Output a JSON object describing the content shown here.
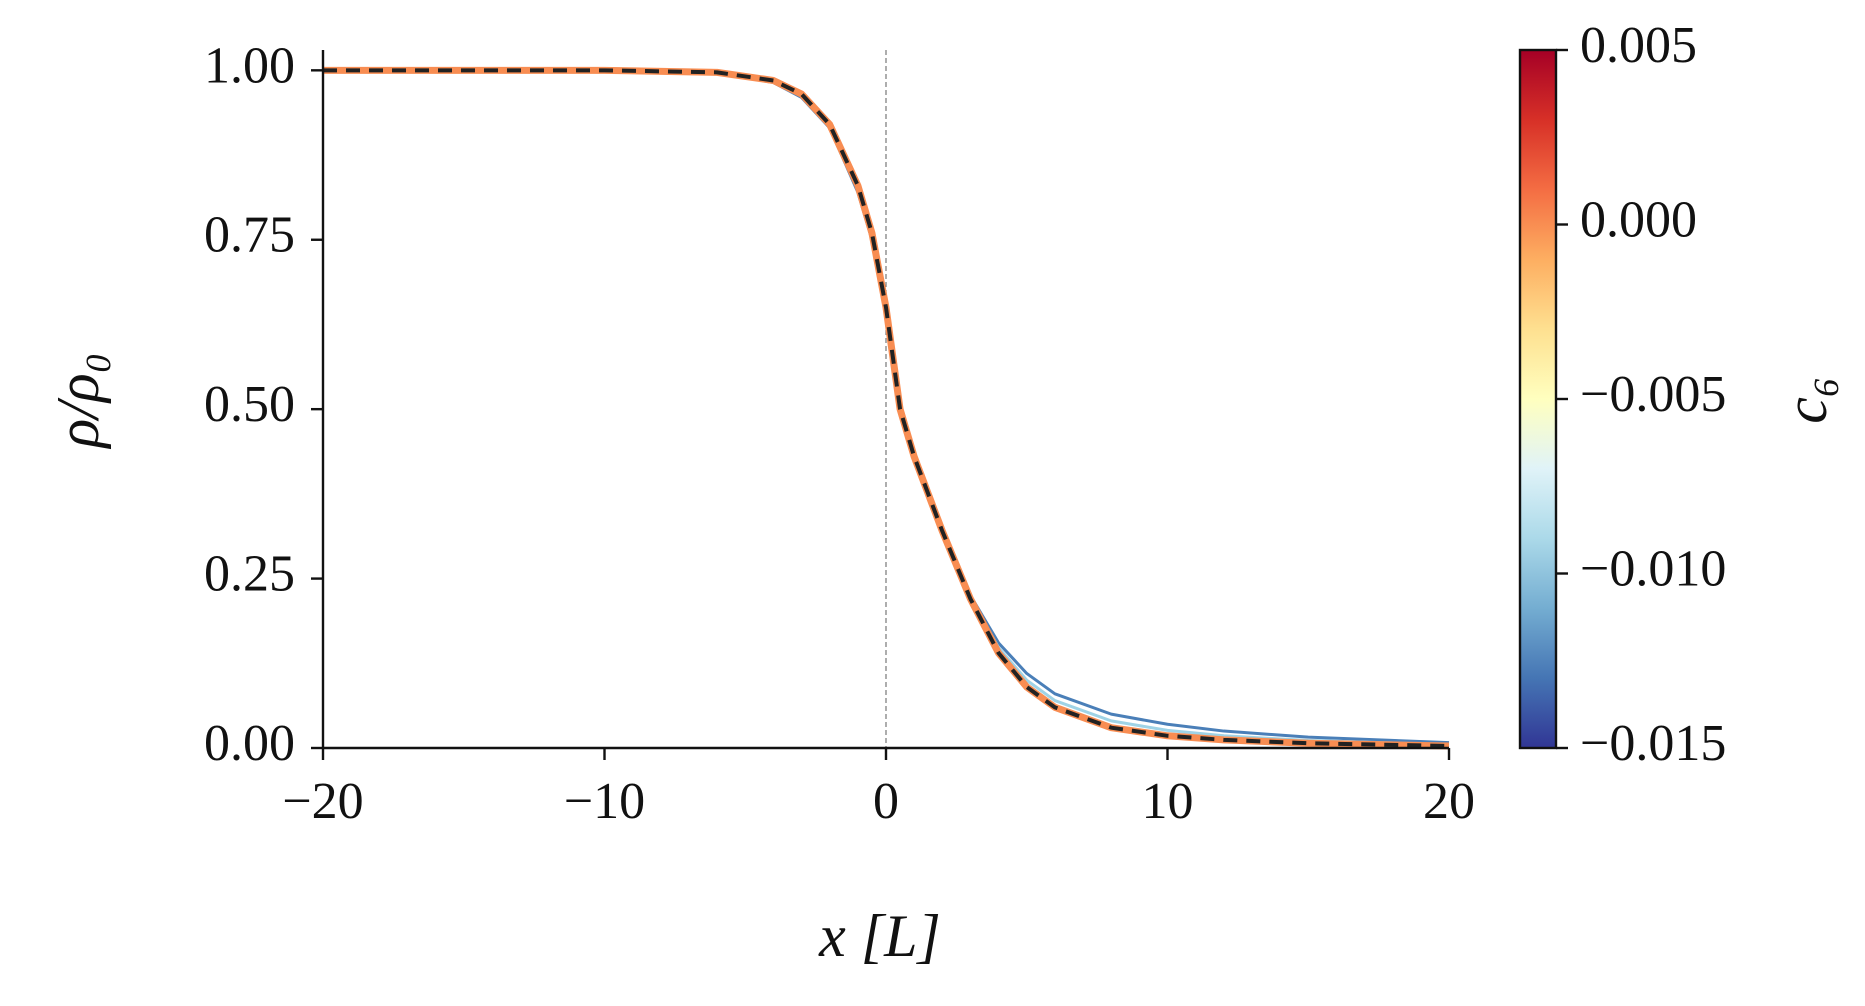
{
  "chart_data": {
    "type": "line",
    "x_label": "x [L]",
    "y_label": "ρ/ρ₀",
    "x": [
      -20,
      -15,
      -10,
      -6,
      -4,
      -3,
      -2,
      -1,
      -0.5,
      0,
      0.5,
      1,
      2,
      3,
      4,
      5,
      6,
      8,
      10,
      12,
      15,
      20
    ],
    "series": [
      {
        "color": "#4a7fb8",
        "values": [
          1,
          1,
          1,
          0.996,
          0.982,
          0.96,
          0.915,
          0.82,
          0.75,
          0.65,
          0.5,
          0.43,
          0.32,
          0.225,
          0.155,
          0.11,
          0.08,
          0.05,
          0.035,
          0.025,
          0.016,
          0.008
        ]
      },
      {
        "color": "#9fd3e6",
        "values": [
          1,
          1,
          1,
          0.997,
          0.984,
          0.962,
          0.918,
          0.825,
          0.755,
          0.65,
          0.5,
          0.43,
          0.32,
          0.222,
          0.148,
          0.1,
          0.07,
          0.04,
          0.026,
          0.018,
          0.011,
          0.005
        ]
      },
      {
        "color": "#f88d52",
        "width": 7,
        "values": [
          1,
          1,
          1,
          0.997,
          0.985,
          0.965,
          0.92,
          0.83,
          0.76,
          0.65,
          0.5,
          0.43,
          0.32,
          0.22,
          0.14,
          0.09,
          0.06,
          0.03,
          0.018,
          0.012,
          0.007,
          0.003
        ]
      },
      {
        "color": "#222222",
        "dash": true,
        "values": [
          1,
          1,
          1,
          0.997,
          0.985,
          0.965,
          0.92,
          0.83,
          0.76,
          0.65,
          0.5,
          0.43,
          0.32,
          0.22,
          0.14,
          0.09,
          0.06,
          0.03,
          0.018,
          0.012,
          0.007,
          0.003
        ]
      }
    ],
    "xlim": [
      -20,
      20
    ],
    "xticks": [
      {
        "value": -20,
        "label": "−20"
      },
      {
        "value": -10,
        "label": "−10"
      },
      0,
      10,
      20
    ],
    "ylim": [
      0,
      1.03
    ],
    "yticks": [
      {
        "value": 0,
        "label": "0.00"
      },
      {
        "value": 0.25,
        "label": "0.25"
      },
      {
        "value": 0.5,
        "label": "0.50"
      },
      {
        "value": 0.75,
        "label": "0.75"
      },
      {
        "value": 1,
        "label": "1.00"
      }
    ],
    "vline": 0,
    "colorbar": {
      "label": "c₆",
      "colors": [
        "#313695",
        "#4575b4",
        "#74add1",
        "#abd9e9",
        "#e0f3f8",
        "#ffffbf",
        "#fee090",
        "#fdae61",
        "#f46d43",
        "#d73027",
        "#a50026"
      ],
      "ylim": [
        -0.015,
        0.005
      ],
      "yticks": [
        {
          "value": -0.015,
          "label": "−0.015"
        },
        {
          "value": -0.01,
          "label": "−0.010"
        },
        {
          "value": -0.005,
          "label": "−0.005"
        },
        {
          "value": 0,
          "label": "0.000"
        },
        {
          "value": 0.005,
          "label": "0.005"
        }
      ]
    }
  }
}
